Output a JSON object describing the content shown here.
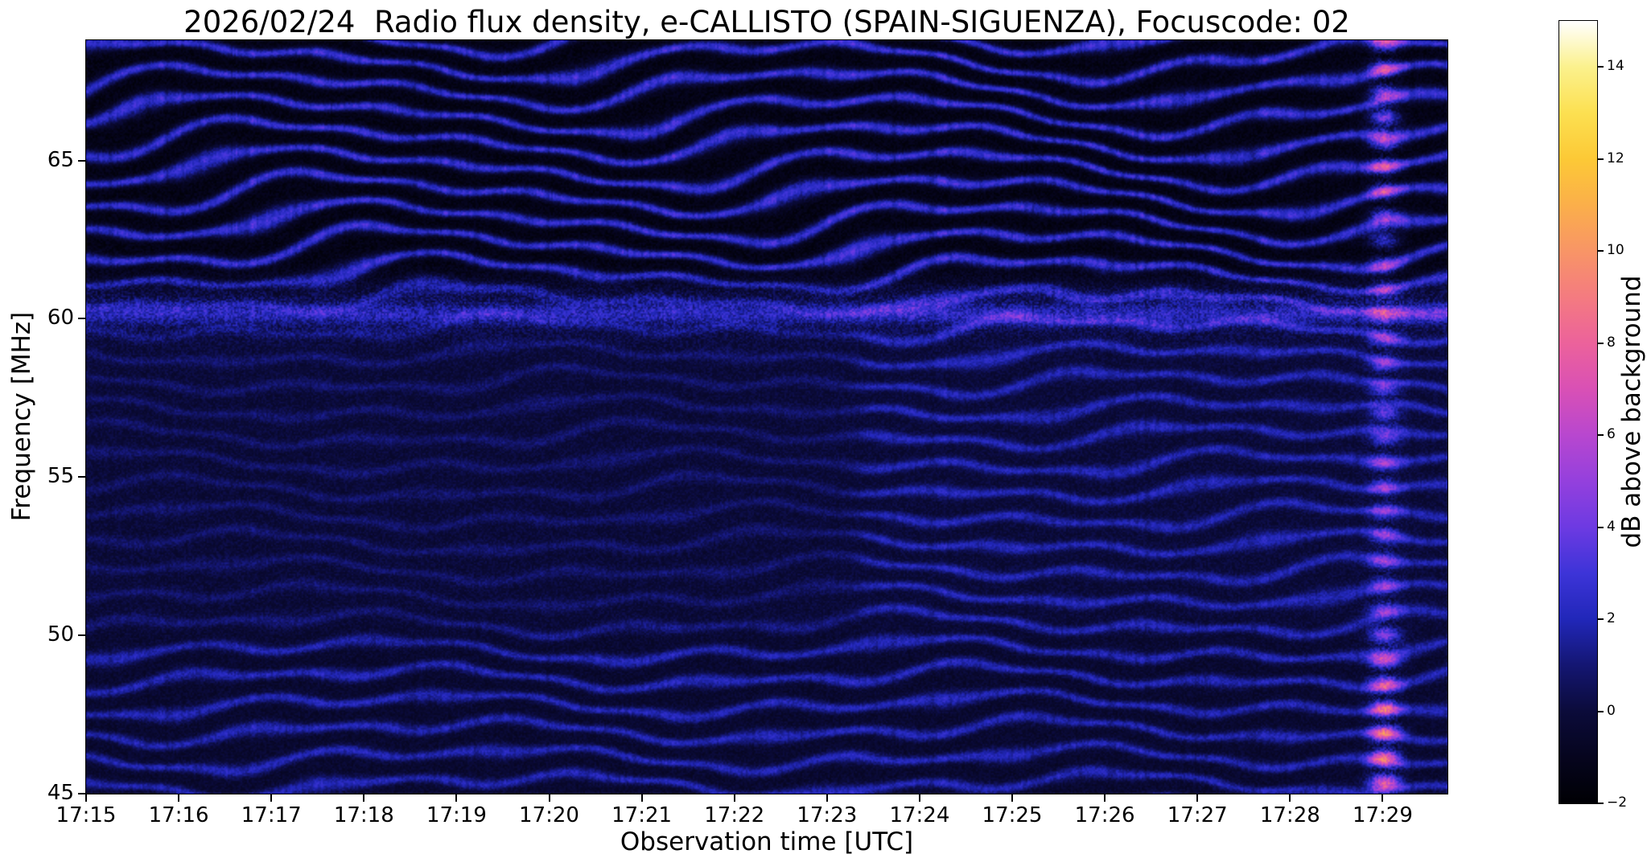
{
  "chart_data": {
    "type": "heatmap",
    "title": "2026/02/24  Radio flux density, e-CALLISTO (SPAIN-SIGUENZA), Focuscode: 02",
    "xlabel": "Observation time [UTC]",
    "ylabel": "Frequency [MHz]",
    "x_ticks": [
      "17:15",
      "17:16",
      "17:17",
      "17:18",
      "17:19",
      "17:20",
      "17:21",
      "17:22",
      "17:23",
      "17:24",
      "17:25",
      "17:26",
      "17:27",
      "17:28",
      "17:29"
    ],
    "x_tick_minutes": [
      0,
      1,
      2,
      3,
      4,
      5,
      6,
      7,
      8,
      9,
      10,
      11,
      12,
      13,
      14
    ],
    "x_total_minutes": 14.7,
    "y_ticks": [
      65,
      60,
      55,
      50,
      45
    ],
    "y_range": [
      45,
      68.8
    ],
    "grid": false,
    "colorbar": {
      "label": "dB above background",
      "ticks": [
        -2,
        0,
        2,
        4,
        6,
        8,
        10,
        12,
        14
      ],
      "range": [
        -2,
        15
      ],
      "stops": [
        {
          "v": -2,
          "c": "#000004"
        },
        {
          "v": -1,
          "c": "#06051e"
        },
        {
          "v": 0,
          "c": "#0b0b3a"
        },
        {
          "v": 1,
          "c": "#141672"
        },
        {
          "v": 2,
          "c": "#2127b9"
        },
        {
          "v": 3,
          "c": "#3d34d8"
        },
        {
          "v": 4,
          "c": "#6d3ae2"
        },
        {
          "v": 5,
          "c": "#9440dd"
        },
        {
          "v": 6,
          "c": "#b847cf"
        },
        {
          "v": 7,
          "c": "#d950b5"
        },
        {
          "v": 8,
          "c": "#ec629b"
        },
        {
          "v": 9,
          "c": "#f47b80"
        },
        {
          "v": 10,
          "c": "#f89566"
        },
        {
          "v": 11,
          "c": "#fbaf4a"
        },
        {
          "v": 12,
          "c": "#fcc936"
        },
        {
          "v": 13,
          "c": "#fce051"
        },
        {
          "v": 14,
          "c": "#fbf18d"
        },
        {
          "v": 15,
          "c": "#ffffff"
        }
      ]
    },
    "render_hints": {
      "band_spacing_mhz": 0.85,
      "bright_line_mhz": 60.15,
      "mid_region_change_min": 8.2,
      "rfi_stripe_center_min": 14.03,
      "rfi_stripe_halfwidth_min": 0.16,
      "background_db": -0.35,
      "noise_seed": 20260224
    }
  }
}
